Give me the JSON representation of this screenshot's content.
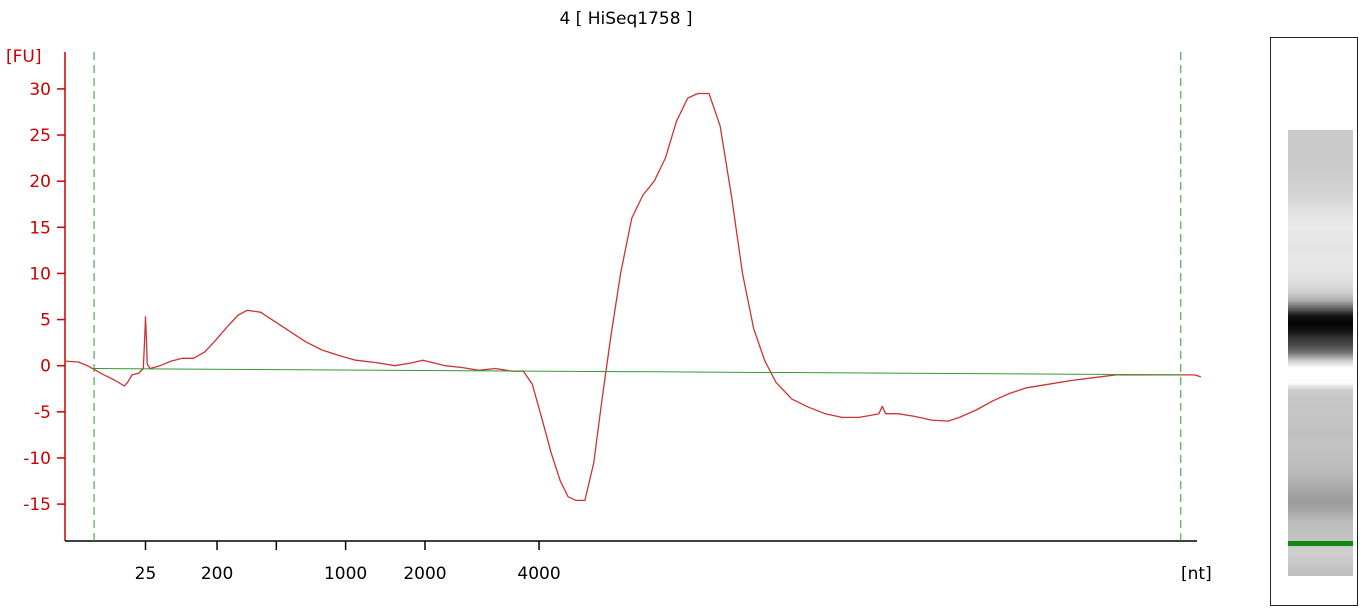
{
  "chart_data": {
    "type": "line",
    "title": "4  [ HiSeq1758 ]",
    "ylabel": "[FU]",
    "xlabel": "[nt]",
    "ylim": [
      -19,
      34
    ],
    "yticks": [
      30,
      25,
      20,
      15,
      10,
      5,
      0,
      -5,
      -10,
      -15
    ],
    "yticks_labels": [
      "30",
      "25",
      "20",
      "15",
      "10",
      "5",
      "0",
      "-5",
      "-10",
      "-15"
    ],
    "xticks": [
      {
        "label": "25",
        "t": 0.072
      },
      {
        "label": "200",
        "t": 0.136
      },
      {
        "label": "",
        "t": 0.189
      },
      {
        "label": "1000",
        "t": 0.251
      },
      {
        "label": "2000",
        "t": 0.322
      },
      {
        "label": "4000",
        "t": 0.424
      }
    ],
    "dashed_markers_t": [
      0.026,
      0.998
    ],
    "series": [
      {
        "color": "#cc3333",
        "points": [
          [
            0.0,
            0.5
          ],
          [
            0.012,
            0.4
          ],
          [
            0.02,
            0.0
          ],
          [
            0.026,
            -0.4
          ],
          [
            0.035,
            -1.0
          ],
          [
            0.045,
            -1.6
          ],
          [
            0.053,
            -2.2
          ],
          [
            0.056,
            -1.8
          ],
          [
            0.06,
            -1.0
          ],
          [
            0.066,
            -0.8
          ],
          [
            0.07,
            -0.3
          ],
          [
            0.0715,
            3.5
          ],
          [
            0.072,
            5.3
          ],
          [
            0.0728,
            3.0
          ],
          [
            0.0735,
            0.2
          ],
          [
            0.076,
            -0.3
          ],
          [
            0.085,
            0.0
          ],
          [
            0.095,
            0.5
          ],
          [
            0.105,
            0.8
          ],
          [
            0.115,
            0.8
          ],
          [
            0.125,
            1.5
          ],
          [
            0.135,
            2.8
          ],
          [
            0.145,
            4.2
          ],
          [
            0.155,
            5.5
          ],
          [
            0.163,
            6.0
          ],
          [
            0.175,
            5.8
          ],
          [
            0.185,
            5.0
          ],
          [
            0.2,
            3.8
          ],
          [
            0.215,
            2.6
          ],
          [
            0.23,
            1.7
          ],
          [
            0.245,
            1.1
          ],
          [
            0.26,
            0.6
          ],
          [
            0.28,
            0.3
          ],
          [
            0.295,
            0.0
          ],
          [
            0.31,
            0.3
          ],
          [
            0.32,
            0.6
          ],
          [
            0.33,
            0.3
          ],
          [
            0.34,
            0.0
          ],
          [
            0.355,
            -0.2
          ],
          [
            0.37,
            -0.5
          ],
          [
            0.385,
            -0.3
          ],
          [
            0.4,
            -0.6
          ],
          [
            0.41,
            -0.6
          ],
          [
            0.418,
            -2.0
          ],
          [
            0.426,
            -5.5
          ],
          [
            0.435,
            -9.5
          ],
          [
            0.443,
            -12.5
          ],
          [
            0.45,
            -14.2
          ],
          [
            0.457,
            -14.6
          ],
          [
            0.465,
            -14.6
          ],
          [
            0.473,
            -10.5
          ],
          [
            0.48,
            -4.0
          ],
          [
            0.488,
            3.0
          ],
          [
            0.497,
            10.0
          ],
          [
            0.507,
            16.0
          ],
          [
            0.517,
            18.5
          ],
          [
            0.527,
            20.0
          ],
          [
            0.537,
            22.5
          ],
          [
            0.547,
            26.5
          ],
          [
            0.557,
            29.0
          ],
          [
            0.566,
            29.5
          ],
          [
            0.576,
            29.5
          ],
          [
            0.586,
            26.0
          ],
          [
            0.596,
            18.5
          ],
          [
            0.606,
            10.0
          ],
          [
            0.616,
            4.0
          ],
          [
            0.626,
            0.5
          ],
          [
            0.636,
            -1.8
          ],
          [
            0.65,
            -3.6
          ],
          [
            0.665,
            -4.5
          ],
          [
            0.68,
            -5.2
          ],
          [
            0.695,
            -5.6
          ],
          [
            0.71,
            -5.6
          ],
          [
            0.72,
            -5.4
          ],
          [
            0.728,
            -5.2
          ],
          [
            0.731,
            -4.4
          ],
          [
            0.734,
            -5.2
          ],
          [
            0.745,
            -5.2
          ],
          [
            0.76,
            -5.5
          ],
          [
            0.775,
            -5.9
          ],
          [
            0.79,
            -6.0
          ],
          [
            0.8,
            -5.6
          ],
          [
            0.815,
            -4.8
          ],
          [
            0.83,
            -3.8
          ],
          [
            0.845,
            -3.0
          ],
          [
            0.86,
            -2.4
          ],
          [
            0.88,
            -2.0
          ],
          [
            0.9,
            -1.6
          ],
          [
            0.92,
            -1.3
          ],
          [
            0.94,
            -1.0
          ],
          [
            0.96,
            -1.0
          ],
          [
            0.98,
            -1.0
          ],
          [
            1.0,
            -1.0
          ],
          [
            1.01,
            -1.0
          ],
          [
            1.016,
            -1.2
          ]
        ]
      },
      {
        "color": "#339933",
        "points": [
          [
            0.026,
            -0.3
          ],
          [
            0.998,
            -1.0
          ]
        ]
      }
    ]
  },
  "colors": {
    "axis": "#cc0000",
    "trace": "#cc3333",
    "baseline": "#339933",
    "marker_line": "#339933",
    "gel_marker": "#118811"
  }
}
